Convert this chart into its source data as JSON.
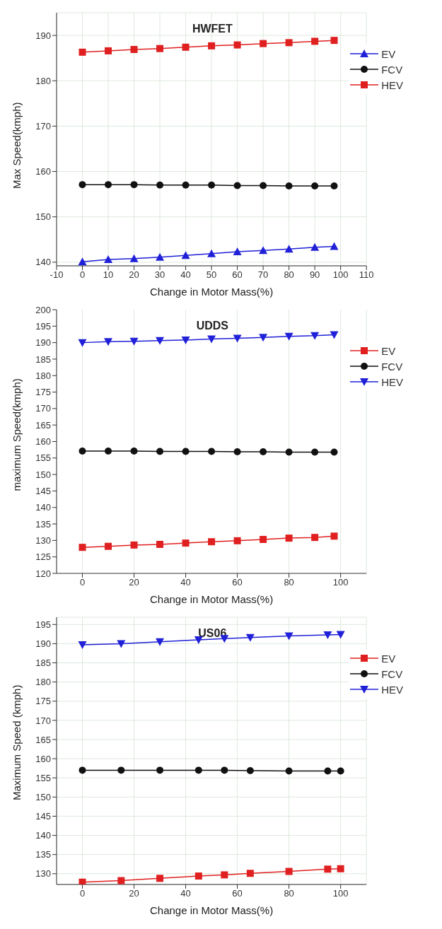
{
  "chart_data": [
    {
      "type": "line",
      "title": "HWFET",
      "xlabel": "Change in Motor Mass(%)",
      "ylabel": "Max Speed(kmph)",
      "x": [
        0,
        10,
        20,
        30,
        40,
        50,
        60,
        70,
        80,
        90,
        97.5
      ],
      "xlim": [
        -10,
        110
      ],
      "xticks": [
        -10,
        0,
        10,
        20,
        30,
        40,
        50,
        60,
        70,
        80,
        90,
        100,
        110
      ],
      "ylim": [
        139.2,
        195
      ],
      "yticks": [
        140,
        150,
        160,
        170,
        180,
        190
      ],
      "grid": true,
      "legend": "top right",
      "series": [
        {
          "name": "EV",
          "color": "#2020d8",
          "marker": "triangle",
          "values": [
            140.1,
            140.6,
            140.8,
            141.1,
            141.5,
            141.9,
            142.3,
            142.6,
            142.9,
            143.3,
            143.5
          ]
        },
        {
          "name": "FCV",
          "color": "#111111",
          "marker": "circle",
          "values": [
            157.1,
            157.1,
            157.1,
            157.0,
            157.0,
            157.0,
            156.9,
            156.9,
            156.8,
            156.8,
            156.8
          ]
        },
        {
          "name": "HEV",
          "color": "#e02020",
          "marker": "square",
          "values": [
            186.3,
            186.6,
            186.9,
            187.1,
            187.4,
            187.7,
            187.9,
            188.2,
            188.4,
            188.7,
            188.9
          ]
        }
      ]
    },
    {
      "type": "line",
      "title": "UDDS",
      "xlabel": "Change in Motor Mass(%)",
      "ylabel": "maximum Speed(kmph)",
      "x": [
        0,
        10,
        20,
        30,
        40,
        50,
        60,
        70,
        80,
        90,
        97.5
      ],
      "xlim": [
        -10,
        110
      ],
      "xticks": [
        0,
        20,
        40,
        60,
        80,
        100
      ],
      "ylim": [
        120,
        200
      ],
      "yticks": [
        120,
        125,
        130,
        135,
        140,
        145,
        150,
        155,
        160,
        165,
        170,
        175,
        180,
        185,
        190,
        195,
        200
      ],
      "grid": "x",
      "legend": "top right",
      "series": [
        {
          "name": "EV",
          "color": "#e02020",
          "marker": "square",
          "values": [
            127.9,
            128.2,
            128.6,
            128.8,
            129.2,
            129.6,
            129.9,
            130.3,
            130.7,
            130.9,
            131.3
          ]
        },
        {
          "name": "FCV",
          "color": "#111111",
          "marker": "circle",
          "values": [
            157.1,
            157.1,
            157.1,
            157.0,
            157.0,
            157.0,
            156.9,
            156.9,
            156.8,
            156.8,
            156.8
          ]
        },
        {
          "name": "HEV",
          "color": "#2020d8",
          "marker": "triangle-down",
          "values": [
            190.0,
            190.3,
            190.4,
            190.6,
            190.8,
            191.1,
            191.3,
            191.6,
            191.9,
            192.1,
            192.4
          ]
        }
      ]
    },
    {
      "type": "line",
      "title": "US06",
      "xlabel": "Change in Motor Mass(%)",
      "ylabel": "Maximum Speed (kmph)",
      "x": [
        0,
        15,
        30,
        45,
        55,
        65,
        80,
        95,
        100
      ],
      "xlim": [
        -10,
        110
      ],
      "xticks": [
        0,
        20,
        40,
        60,
        80,
        100
      ],
      "ylim": [
        127.2,
        196.9
      ],
      "yticks": [
        130,
        135,
        140,
        145,
        150,
        155,
        160,
        165,
        170,
        175,
        180,
        185,
        190,
        195
      ],
      "grid": true,
      "legend": "top right",
      "series": [
        {
          "name": "EV",
          "color": "#e02020",
          "marker": "square",
          "values": [
            127.8,
            128.2,
            128.8,
            129.4,
            129.7,
            130.1,
            130.6,
            131.2,
            131.3
          ]
        },
        {
          "name": "FCV",
          "color": "#111111",
          "marker": "circle",
          "values": [
            157.0,
            157.0,
            157.0,
            157.0,
            157.0,
            156.9,
            156.8,
            156.8,
            156.8
          ]
        },
        {
          "name": "HEV",
          "color": "#2020d8",
          "marker": "triangle-down",
          "values": [
            189.7,
            190.0,
            190.5,
            191.0,
            191.3,
            191.6,
            192.0,
            192.3,
            192.4
          ]
        }
      ]
    }
  ]
}
